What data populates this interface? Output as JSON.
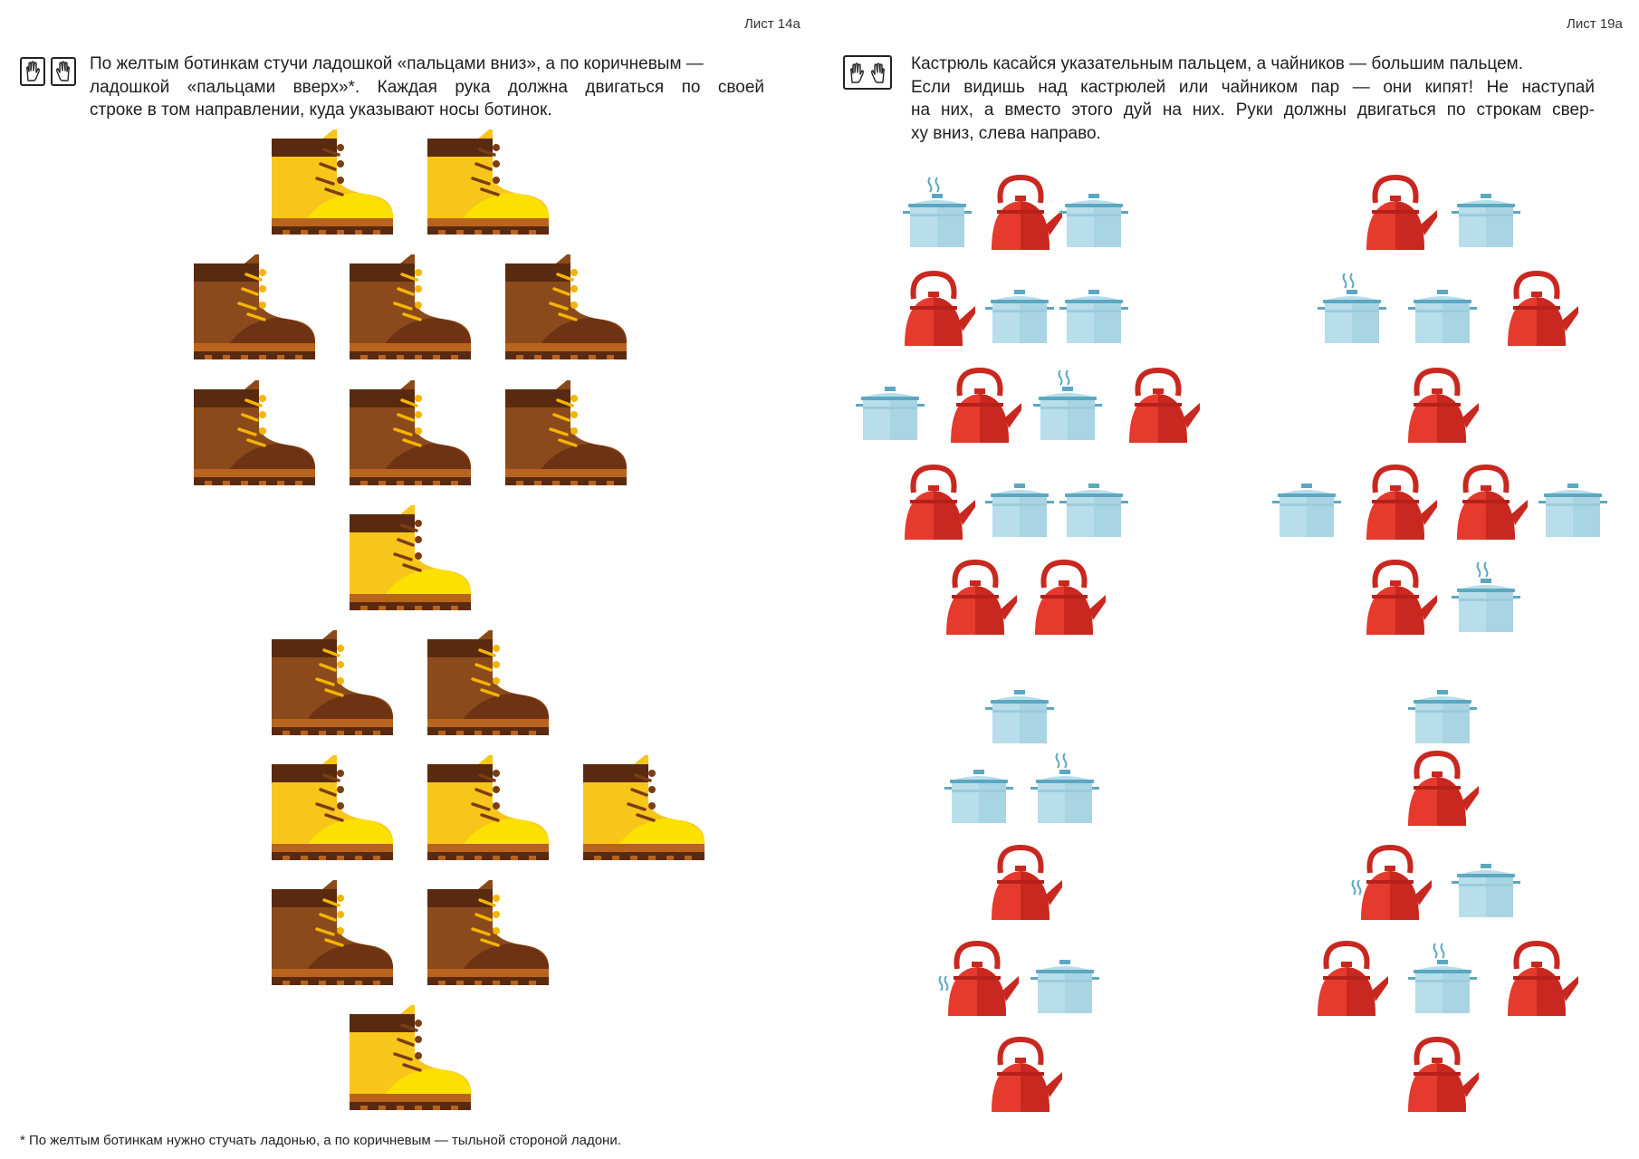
{
  "colors": {
    "yellow_boot": "#F8C51B",
    "yellow_boot_toe": "#FCE000",
    "brown_boot": "#8A4A1B",
    "brown_boot_dark": "#6E3312",
    "boot_collar": "#5A2A10",
    "boot_sole": "#B8641E",
    "pot": "#B7DEEA",
    "pot_lid": "#5CA7C1",
    "kettle": "#E53A2D",
    "kettle_dark": "#C8281F"
  },
  "left_page": {
    "sheet_label": "Лист 14а",
    "hand_icons": [
      "hand-palm-down-icon",
      "hand-palm-up-icon"
    ],
    "instruction": [
      "По желтым ботинкам стучи ладошкой «пальцами вниз», а по коричневым —",
      "ладошкой «пальцами вверх»*. Каждая рука должна двигаться по своей",
      "строке в том направлении, куда указывают носы ботинок."
    ],
    "boot_rows": [
      [
        "yellow",
        "yellow"
      ],
      [
        "brown",
        "brown",
        "brown"
      ],
      [
        "brown",
        "brown",
        "brown"
      ],
      [
        "yellow"
      ],
      [
        "brown",
        "brown"
      ],
      [
        "yellow",
        "yellow",
        "yellow"
      ],
      [
        "brown",
        "brown"
      ],
      [
        "yellow"
      ]
    ],
    "footnote": "* По желтым ботинкам нужно стучать ладонью, а по коричневым — тыльной стороной ладони."
  },
  "right_page": {
    "sheet_label": "Лист 19а",
    "hand_icons": [
      "hands-both-icon"
    ],
    "instruction": [
      "Кастрюль касайся указательным пальцем, а чайников — большим пальцем.",
      "Если видишь над кастрюлей или чайником пар — они кипят! Не наступай",
      "на них, а вместо этого дуй на них. Руки должны двигаться по строкам свер-",
      "ху вниз, слева направо."
    ],
    "left_column": [
      [
        "pot-steam",
        "kettle",
        "pot"
      ],
      [
        "kettle",
        "pot",
        "pot"
      ],
      [
        "pot",
        "kettle",
        "pot-steam",
        "kettle"
      ],
      [
        "kettle",
        "pot",
        "pot"
      ],
      [
        "kettle",
        "kettle"
      ],
      [
        "pot"
      ],
      [
        "pot",
        "pot-steam"
      ],
      [
        "kettle"
      ],
      [
        "kettle-steam",
        "pot"
      ],
      [
        "kettle"
      ]
    ],
    "right_column": [
      [
        "kettle",
        "pot"
      ],
      [
        "pot-steam",
        "pot",
        "kettle"
      ],
      [
        "kettle"
      ],
      [
        "pot",
        "kettle",
        "kettle",
        "pot"
      ],
      [
        "kettle",
        "pot-steam"
      ],
      [
        "pot"
      ],
      [
        "kettle"
      ],
      [
        "kettle-steam",
        "pot"
      ],
      [
        "kettle",
        "pot-steam",
        "kettle"
      ],
      [
        "kettle"
      ]
    ]
  }
}
